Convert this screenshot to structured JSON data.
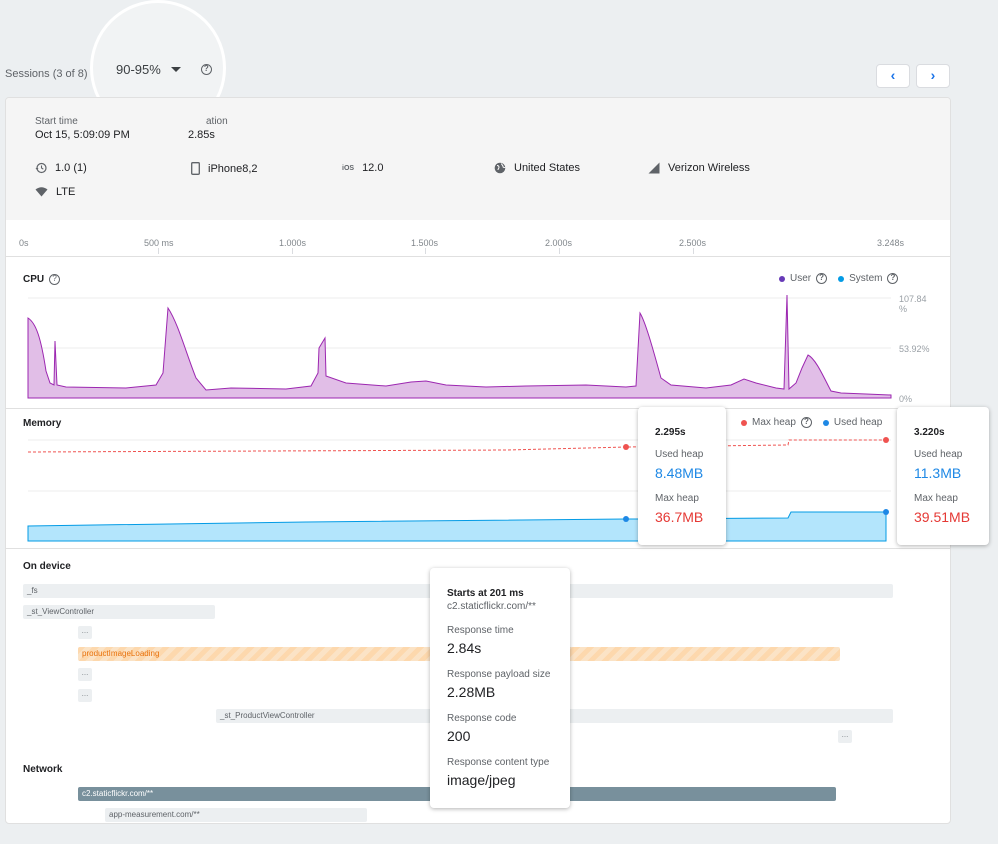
{
  "header": {
    "sessions_label": "Sessions (3 of 8)",
    "percentile": "90-95%"
  },
  "session": {
    "start_time_label": "Start time",
    "start_time_value": "Oct 15, 5:09:09 PM",
    "duration_label": "ation",
    "duration_value": "2.85s",
    "version": "1.0 (1)",
    "device": "iPhone8,2",
    "os_prefix": "iOS",
    "os_version": "12.0",
    "country": "United States",
    "carrier": "Verizon Wireless",
    "network_type": "LTE"
  },
  "timeline": {
    "ticks": [
      "0s",
      "500 ms",
      "1.000s",
      "1.500s",
      "2.000s",
      "2.500s",
      "3.248s"
    ]
  },
  "cpu": {
    "title": "CPU",
    "legend_user": "User",
    "legend_system": "System",
    "axis_top": "107.84",
    "axis_top_unit": "%",
    "axis_mid": "53.92%",
    "axis_bottom": "0%",
    "user_color": "#673ab7",
    "system_color": "#039be5"
  },
  "memory": {
    "title": "Memory",
    "legend_max": "Max heap",
    "legend_used": "Used heap",
    "tooltip1": {
      "time": "2.295s",
      "used_label": "Used heap",
      "used_value": "8.48MB",
      "max_label": "Max heap",
      "max_value": "36.7MB"
    },
    "tooltip2": {
      "time": "3.220s",
      "used_label": "Used heap",
      "used_value": "11.3MB",
      "max_label": "Max heap",
      "max_value": "39.51MB"
    }
  },
  "on_device": {
    "title": "On device",
    "traces": [
      "_fs",
      "_st_ViewController",
      "...",
      "productImageLoading",
      "...",
      "...",
      "_st_ProductViewController",
      "..."
    ]
  },
  "network": {
    "title": "Network",
    "requests": [
      "c2.staticflickr.com/**",
      "app-measurement.com/**"
    ],
    "tooltip": {
      "starts": "Starts at 201 ms",
      "url": "c2.staticflickr.com/**",
      "response_time_label": "Response time",
      "response_time_value": "2.84s",
      "payload_label": "Response payload size",
      "payload_value": "2.28MB",
      "code_label": "Response code",
      "code_value": "200",
      "content_type_label": "Response content type",
      "content_type_value": "image/jpeg"
    }
  },
  "icons": {
    "help": "?",
    "prev": "‹",
    "next": "›"
  }
}
